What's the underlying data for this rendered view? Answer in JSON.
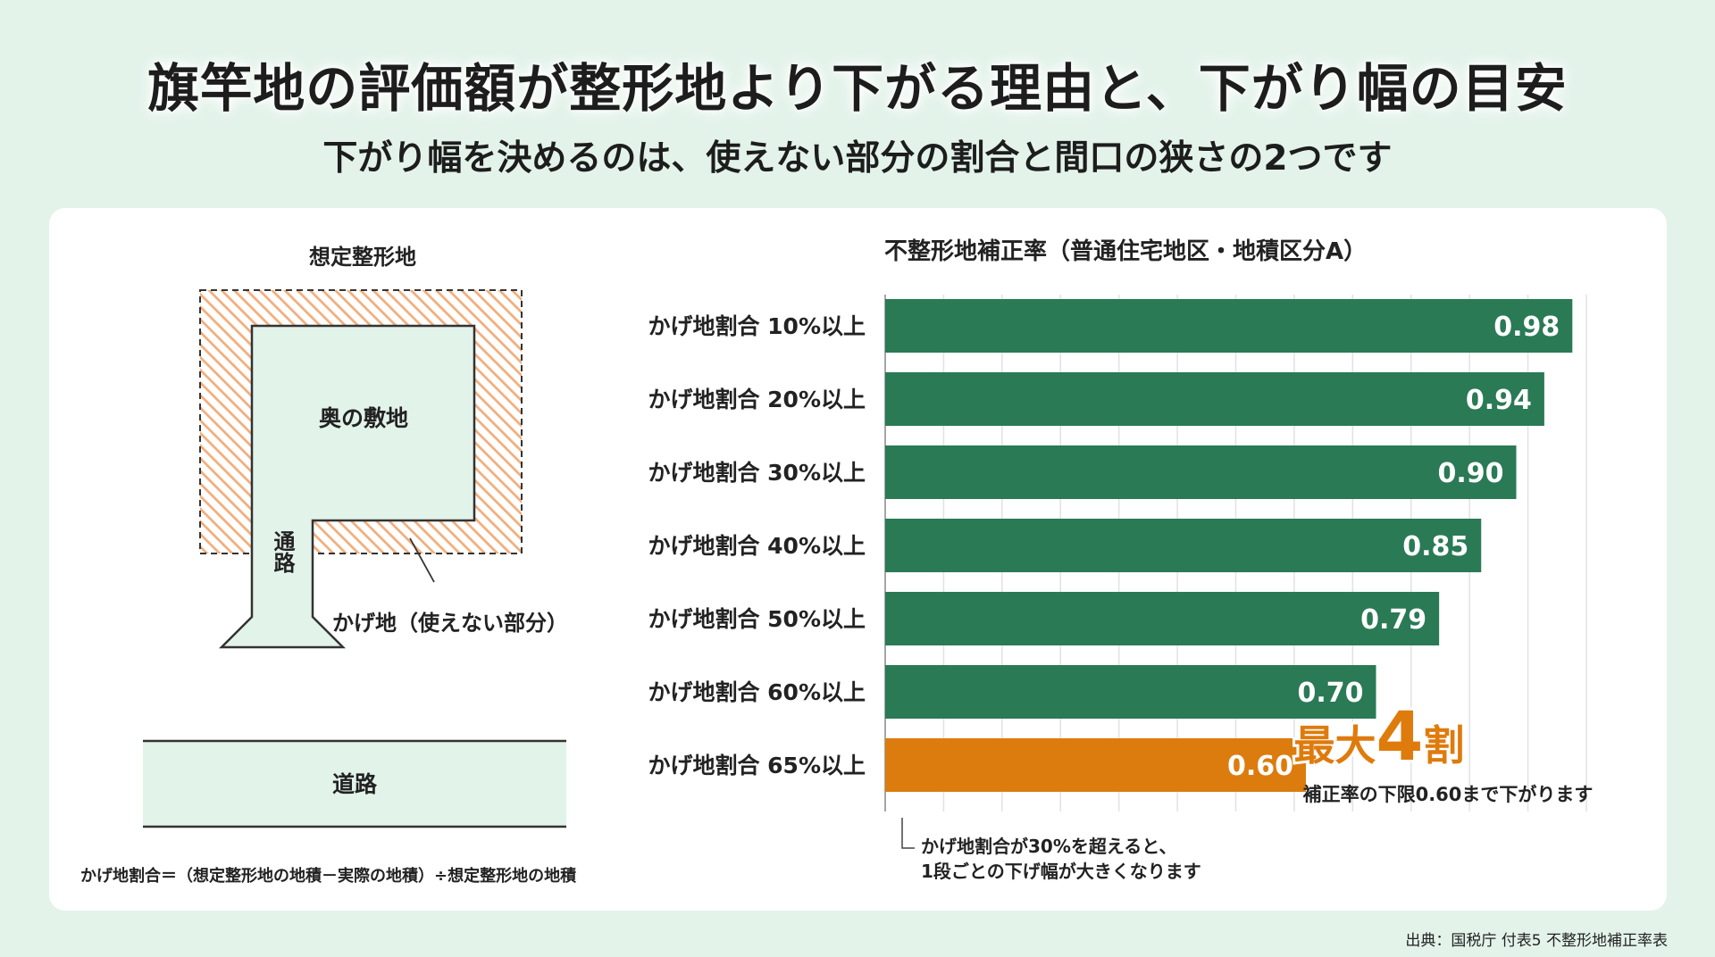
{
  "title": "旗竿地の評価額が整形地より下がる理由と、下がり幅の目安",
  "subtitle": "下がり幅を決めるのは、使えない部分の割合と間口の狭さの2つです",
  "diagram": {
    "assumed_label": "想定整形地",
    "back_land_label": "奥の敷地",
    "passage_label": "通路",
    "kage_label": "かげ地（使えない部分）",
    "road_label": "道路",
    "formula": "かげ地割合＝（想定整形地の地積－実際の地積）÷想定整形地の地積"
  },
  "callout": {
    "big_prefix": "最大",
    "big_number": "4",
    "big_suffix": "割",
    "sub": "補正率の下限0.60まで下がります"
  },
  "note": {
    "line1": "かげ地割合が30%を超えると、",
    "line2": "1段ごとの下げ幅が大きくなります"
  },
  "source": "出典：国税庁 付表5 不整形地補正率表",
  "colors": {
    "background": "#e3f3ea",
    "bar_green": "#2a7a55",
    "bar_orange": "#dc7c0e",
    "hatch": "#f2ae7c",
    "land_fill": "#e2f3ea",
    "accent_text": "#df7b0d"
  },
  "chart_data": {
    "type": "bar",
    "orientation": "horizontal",
    "title": "不整形地補正率（普通住宅地区・地積区分A）",
    "categories": [
      "かげ地割合 10%以上",
      "かげ地割合 20%以上",
      "かげ地割合 30%以上",
      "かげ地割合 40%以上",
      "かげ地割合 50%以上",
      "かげ地割合 60%以上",
      "かげ地割合 65%以上"
    ],
    "values": [
      0.98,
      0.94,
      0.9,
      0.85,
      0.79,
      0.7,
      0.6
    ],
    "value_labels": [
      "0.98",
      "0.94",
      "0.90",
      "0.85",
      "0.79",
      "0.70",
      "0.60"
    ],
    "highlight_index": 6,
    "xlim": [
      0,
      1.0
    ],
    "grid": "vertical",
    "xlabel": "",
    "ylabel": ""
  }
}
